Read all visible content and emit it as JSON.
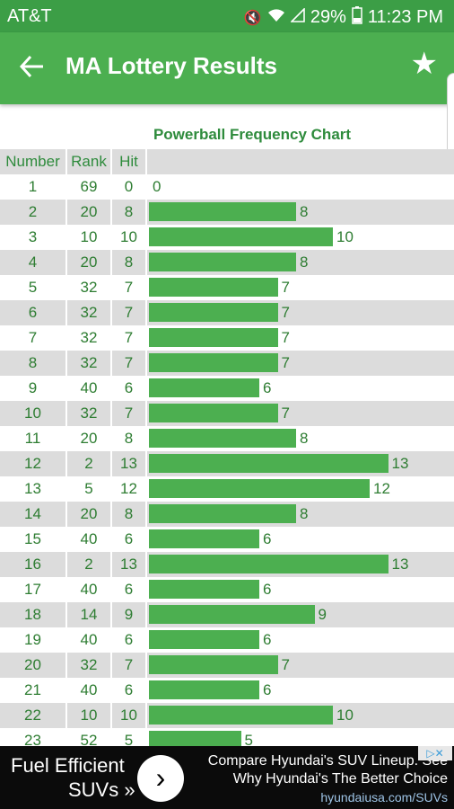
{
  "status_bar": {
    "carrier": "AT&T",
    "battery": "29%",
    "time": "11:23 PM"
  },
  "app_bar": {
    "title": "MA Lottery Results",
    "back_icon": "arrow-left-icon",
    "favorite_icon": "star-icon"
  },
  "chart_title": "Powerball Frequency Chart",
  "table_headers": {
    "number": "Number",
    "rank": "Rank",
    "hit": "Hit"
  },
  "chart_data": {
    "type": "bar",
    "title": "Powerball Frequency Chart",
    "categories": [
      "1",
      "2",
      "3",
      "4",
      "5",
      "6",
      "7",
      "8",
      "9",
      "10",
      "11",
      "12",
      "13",
      "14",
      "15",
      "16",
      "17",
      "18",
      "19",
      "20",
      "21",
      "22",
      "23"
    ],
    "ranks": [
      69,
      20,
      10,
      20,
      32,
      32,
      32,
      32,
      40,
      32,
      20,
      2,
      5,
      20,
      40,
      2,
      40,
      14,
      40,
      32,
      40,
      10,
      52
    ],
    "values": [
      0,
      8,
      10,
      8,
      7,
      7,
      7,
      7,
      6,
      7,
      8,
      13,
      12,
      8,
      6,
      13,
      6,
      9,
      6,
      7,
      6,
      10,
      5
    ],
    "xlabel": "",
    "ylabel": "Hit",
    "bar_color": "#4caf50"
  },
  "ad": {
    "headline_1": "Fuel Efficient",
    "headline_2": "SUVs »",
    "arrow_icon": "chevron-right-icon",
    "line_1": "Compare Hyundai's SUV Lineup. See",
    "line_2": "Why Hyundai's The Better Choice",
    "url": "hyundaiusa.com/SUVs",
    "adchoices_icon": "adchoices-icon"
  },
  "colors": {
    "status_bar": "#3c9e46",
    "app_bar": "#4caf50",
    "row_shade": "#dcdcdc",
    "text_green": "#2e7d32"
  }
}
